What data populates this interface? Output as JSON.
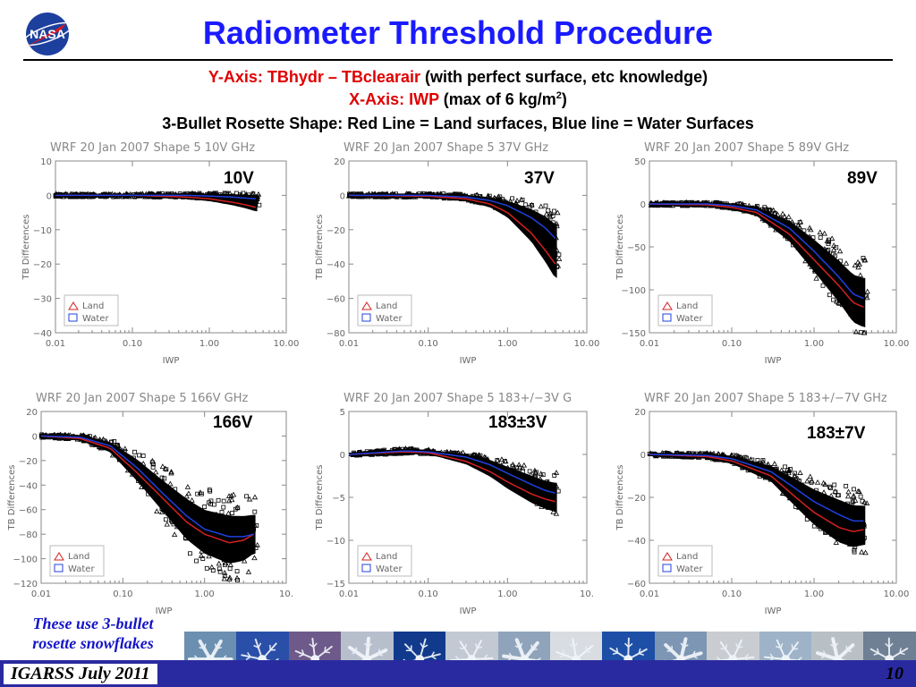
{
  "header": {
    "title": "Radiometer Threshold Procedure",
    "yaxis_label": "Y-Axis: TBhydr – TBclearair",
    "yaxis_note": " (with perfect surface, etc knowledge)",
    "xaxis_label": "X-Axis: IWP",
    "xaxis_note_pre": " (max of 6 kg/m",
    "xaxis_note_sup": "2",
    "xaxis_note_post": ")",
    "rosette": "3-Bullet Rosette Shape: Red Line = Land surfaces, Blue line = Water Surfaces"
  },
  "colors": {
    "title": "#1a1aff",
    "highlight": "#e00000",
    "land": "#d62020",
    "water": "#2040e0",
    "scatter": "#000000",
    "footer": "#2a2aa0"
  },
  "chart_data": [
    {
      "type": "scatter",
      "title": "WRF 20 Jan 2007 Shape 5 10V GHz",
      "tag": "10V",
      "xlabel": "IWP",
      "ylabel": "TB Differences",
      "xscale": "log",
      "xlim": [
        0.01,
        10
      ],
      "ylim": [
        -40,
        10
      ],
      "yticks": [
        10,
        0,
        -10,
        -20,
        -30,
        -40
      ],
      "xticks": [
        "0.01",
        "0.10",
        "1.00",
        "10.00"
      ],
      "legend": [
        "Land",
        "Water"
      ],
      "legend_position": "bottom-left",
      "series": [
        {
          "name": "Land",
          "x": [
            0.01,
            0.1,
            0.5,
            1,
            2,
            3,
            4
          ],
          "y": [
            0,
            0,
            -0.5,
            -1,
            -2,
            -2.8,
            -3.5
          ]
        },
        {
          "name": "Water",
          "x": [
            0.01,
            0.1,
            0.5,
            1,
            2,
            3,
            4
          ],
          "y": [
            0,
            0,
            0,
            -0.2,
            -0.5,
            -0.8,
            -1
          ]
        }
      ]
    },
    {
      "type": "scatter",
      "title": "WRF 20 Jan 2007 Shape 5 37V GHz",
      "tag": "37V",
      "xlabel": "IWP",
      "ylabel": "TB Differences",
      "xscale": "log",
      "xlim": [
        0.01,
        10
      ],
      "ylim": [
        -80,
        20
      ],
      "yticks": [
        20,
        0,
        -20,
        -40,
        -60,
        -80
      ],
      "xticks": [
        "0.01",
        "0.10",
        "1.00",
        "10.00"
      ],
      "legend": [
        "Land",
        "Water"
      ],
      "legend_position": "bottom-left",
      "series": [
        {
          "name": "Land",
          "x": [
            0.01,
            0.1,
            0.3,
            0.6,
            1,
            2,
            3,
            4
          ],
          "y": [
            0,
            -0.5,
            -2,
            -5,
            -10,
            -22,
            -32,
            -40
          ]
        },
        {
          "name": "Water",
          "x": [
            0.01,
            0.1,
            0.3,
            0.6,
            1,
            2,
            3,
            4
          ],
          "y": [
            0,
            0,
            -1,
            -3,
            -6,
            -13,
            -19,
            -25
          ]
        }
      ]
    },
    {
      "type": "scatter",
      "title": "WRF 20 Jan 2007 Shape 5 89V GHz",
      "tag": "89V",
      "xlabel": "IWP",
      "ylabel": "TB Differences",
      "xscale": "log",
      "xlim": [
        0.01,
        10
      ],
      "ylim": [
        -150,
        50
      ],
      "yticks": [
        50,
        0,
        -50,
        -100,
        -150
      ],
      "xticks": [
        "0.01",
        "0.10",
        "1.00",
        "10.00"
      ],
      "legend": [
        "Land",
        "Water"
      ],
      "legend_position": "bottom-left",
      "series": [
        {
          "name": "Land",
          "x": [
            0.01,
            0.05,
            0.1,
            0.2,
            0.5,
            1,
            2,
            3,
            4
          ],
          "y": [
            0,
            -1,
            -4,
            -10,
            -35,
            -65,
            -95,
            -115,
            -120
          ]
        },
        {
          "name": "Water",
          "x": [
            0.01,
            0.05,
            0.1,
            0.2,
            0.5,
            1,
            2,
            3,
            4
          ],
          "y": [
            0,
            0,
            -2,
            -7,
            -28,
            -55,
            -85,
            -105,
            -110
          ]
        }
      ]
    },
    {
      "type": "scatter",
      "title": "WRF 20 Jan 2007 Shape 5 166V GHz",
      "tag": "166V",
      "xlabel": "IWP",
      "ylabel": "TB Differences",
      "xscale": "log",
      "xlim": [
        0.01,
        10
      ],
      "ylim": [
        -120,
        20
      ],
      "yticks": [
        20,
        0,
        -20,
        -40,
        -60,
        -80,
        -100,
        -120
      ],
      "xticks": [
        "0.01",
        "0.10",
        "1.00",
        "10."
      ],
      "legend": [
        "Land",
        "Water"
      ],
      "legend_position": "bottom-left",
      "series": [
        {
          "name": "Land",
          "x": [
            0.01,
            0.03,
            0.07,
            0.15,
            0.3,
            0.6,
            1,
            2,
            3,
            4
          ],
          "y": [
            0,
            -2,
            -10,
            -30,
            -50,
            -70,
            -80,
            -87,
            -85,
            -80
          ]
        },
        {
          "name": "Water",
          "x": [
            0.01,
            0.03,
            0.07,
            0.15,
            0.3,
            0.6,
            1,
            2,
            3,
            4
          ],
          "y": [
            0,
            -1,
            -8,
            -26,
            -46,
            -65,
            -76,
            -82,
            -82,
            -80
          ]
        }
      ]
    },
    {
      "type": "scatter",
      "title": "WRF 20 Jan 2007 Shape 5 183+/−3V G",
      "tag": "183±3V",
      "xlabel": "IWP",
      "ylabel": "TB Differences",
      "xscale": "log",
      "xlim": [
        0.01,
        10
      ],
      "ylim": [
        -15,
        5
      ],
      "yticks": [
        5,
        0,
        -5,
        -10,
        -15
      ],
      "xticks": [
        "0.01",
        "0.10",
        "1.00",
        "10."
      ],
      "legend": [
        "Land",
        "Water"
      ],
      "legend_position": "bottom-left",
      "series": [
        {
          "name": "Land",
          "x": [
            0.01,
            0.05,
            0.1,
            0.3,
            0.6,
            1,
            2,
            3,
            4
          ],
          "y": [
            0,
            0.3,
            0.2,
            -0.8,
            -2,
            -3.2,
            -4.6,
            -5.2,
            -5.5
          ]
        },
        {
          "name": "Water",
          "x": [
            0.01,
            0.05,
            0.1,
            0.3,
            0.6,
            1,
            2,
            3,
            4
          ],
          "y": [
            0,
            0.4,
            0.3,
            -0.3,
            -1.2,
            -2.2,
            -3.5,
            -4.2,
            -4.5
          ]
        }
      ]
    },
    {
      "type": "scatter",
      "title": "WRF 20 Jan 2007 Shape 5 183+/−7V GHz",
      "tag": "183±7V",
      "xlabel": "IWP",
      "ylabel": "TB Differences",
      "xscale": "log",
      "xlim": [
        0.01,
        10
      ],
      "ylim": [
        -60,
        20
      ],
      "yticks": [
        20,
        0,
        -20,
        -40,
        -60
      ],
      "xticks": [
        "0.01",
        "0.10",
        "1.00",
        "10.00"
      ],
      "legend": [
        "Land",
        "Water"
      ],
      "legend_position": "bottom-left",
      "series": [
        {
          "name": "Land",
          "x": [
            0.01,
            0.05,
            0.1,
            0.3,
            0.6,
            1,
            2,
            3,
            4
          ],
          "y": [
            0,
            -1,
            -3,
            -10,
            -20,
            -27,
            -34,
            -36,
            -35
          ]
        },
        {
          "name": "Water",
          "x": [
            0.01,
            0.05,
            0.1,
            0.3,
            0.6,
            1,
            2,
            3,
            4
          ],
          "y": [
            0,
            -0.5,
            -2,
            -8,
            -16,
            -22,
            -28,
            -31,
            -31
          ]
        }
      ]
    }
  ],
  "caption": {
    "line1": "These use 3-bullet",
    "line2": "rosette snowflakes"
  },
  "footer": {
    "conference": "IGARSS July 2011",
    "page": "10"
  },
  "snowflake_icons": [
    "snowflake-1",
    "snowflake-2",
    "snowflake-3",
    "snowflake-4",
    "snowflake-5",
    "snowflake-6",
    "snowflake-7",
    "snowflake-8",
    "snowflake-9",
    "snowflake-10",
    "snowflake-11",
    "snowflake-12",
    "snowflake-13",
    "snowflake-14"
  ]
}
